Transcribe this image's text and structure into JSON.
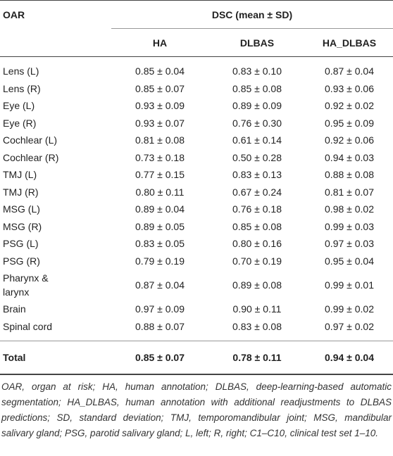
{
  "table": {
    "header": {
      "row_label": "OAR",
      "group": "DSC (mean ± SD)",
      "columns": [
        "HA",
        "DLBAS",
        "HA_DLBAS"
      ]
    },
    "rows": [
      [
        "Lens (L)",
        "0.85 ± 0.04",
        "0.83 ± 0.10",
        "0.87 ± 0.04"
      ],
      [
        "Lens (R)",
        "0.85 ± 0.07",
        "0.85 ± 0.08",
        "0.93 ± 0.06"
      ],
      [
        "Eye (L)",
        "0.93 ± 0.09",
        "0.89 ± 0.09",
        "0.92 ± 0.02"
      ],
      [
        "Eye (R)",
        "0.93 ± 0.07",
        "0.76 ± 0.30",
        "0.95 ± 0.09"
      ],
      [
        "Cochlear (L)",
        "0.81 ± 0.08",
        "0.61 ± 0.14",
        "0.92 ± 0.06"
      ],
      [
        "Cochlear (R)",
        "0.73 ± 0.18",
        "0.50 ± 0.28",
        "0.94 ± 0.03"
      ],
      [
        "TMJ (L)",
        "0.77 ± 0.15",
        "0.83 ± 0.13",
        "0.88 ± 0.08"
      ],
      [
        "TMJ (R)",
        "0.80 ± 0.11",
        "0.67 ± 0.24",
        "0.81 ± 0.07"
      ],
      [
        "MSG (L)",
        "0.89 ± 0.04",
        "0.76 ± 0.18",
        "0.98 ± 0.02"
      ],
      [
        "MSG (R)",
        "0.89 ± 0.05",
        "0.85 ± 0.08",
        "0.99 ± 0.03"
      ],
      [
        "PSG (L)",
        "0.83 ± 0.05",
        "0.80 ± 0.16",
        "0.97 ± 0.03"
      ],
      [
        "PSG (R)",
        "0.79 ± 0.19",
        "0.70 ± 0.19",
        "0.95 ± 0.04"
      ],
      [
        "Pharynx & larynx",
        "0.87 ± 0.04",
        "0.89 ± 0.08",
        "0.99 ± 0.01"
      ],
      [
        "Brain",
        "0.97 ± 0.09",
        "0.90 ± 0.11",
        "0.99 ± 0.02"
      ],
      [
        "Spinal cord",
        "0.88 ± 0.07",
        "0.83 ± 0.08",
        "0.97 ± 0.02"
      ]
    ],
    "total": [
      "Total",
      "0.85 ± 0.07",
      "0.78 ± 0.11",
      "0.94 ± 0.04"
    ]
  },
  "footnote": "OAR, organ at risk; HA, human annotation; DLBAS, deep-learning-based automatic segmentation; HA_DLBAS, human annotation with additional readjustments to DLBAS predictions; SD, standard deviation; TMJ, temporomandibular joint; MSG, mandibular salivary gland; PSG, parotid salivary gland; L, left; R, right; C1–C10, clinical test set 1–10."
}
